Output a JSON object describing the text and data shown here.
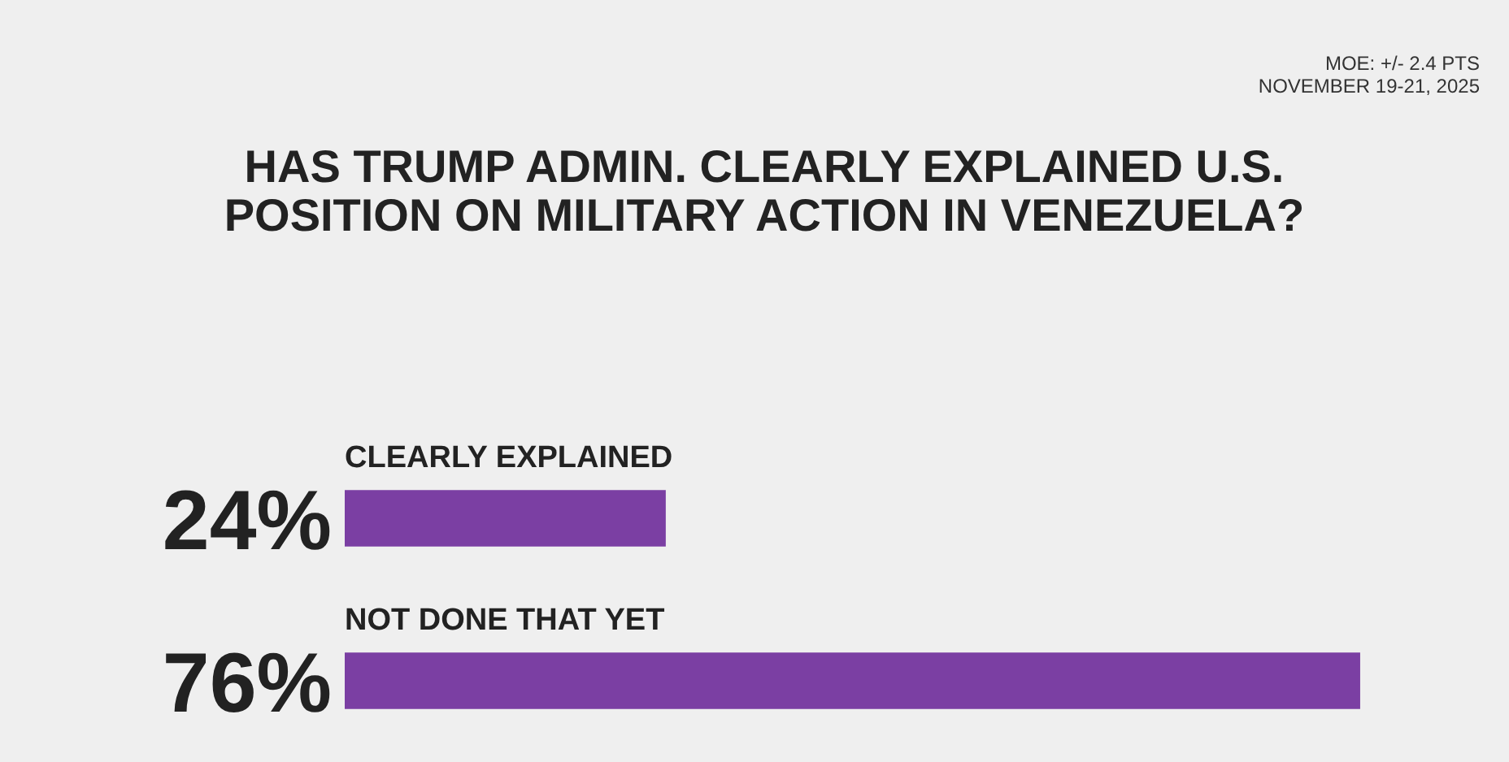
{
  "chart_data": {
    "type": "bar",
    "orientation": "horizontal",
    "title": "HAS TRUMP ADMIN. CLEARLY EXPLAINED U.S. POSITION ON MILITARY ACTION IN VENEZUELA?",
    "annotations": [
      "MOE: +/- 2.4 PTS",
      "NOVEMBER 19-21, 2025"
    ],
    "categories": [
      "CLEARLY EXPLAINED",
      "NOT DONE THAT YET"
    ],
    "values": [
      24,
      76
    ],
    "value_labels": [
      "24%",
      "76%"
    ],
    "color": "#7b3fa3",
    "legend": false
  }
}
